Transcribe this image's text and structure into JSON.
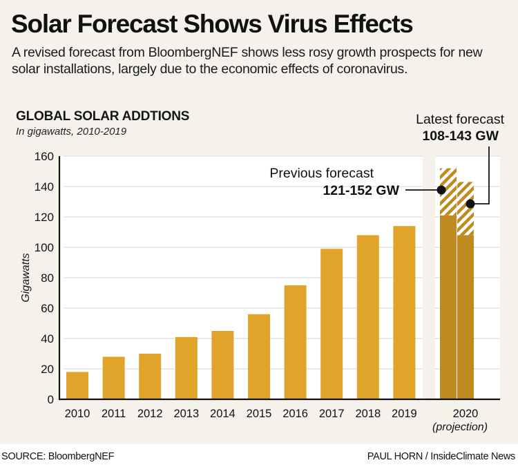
{
  "header": {
    "title": "Solar Forecast Shows Virus Effects",
    "subtitle": "A revised forecast from BloombergNEF shows less rosy growth prospects for new solar installations, largely due to the economic effects of coronavirus."
  },
  "footer": {
    "source": "SOURCE: BloombergNEF",
    "credit": "PAUL HORN / InsideClimate News"
  },
  "colors": {
    "bar": "#e0a42b",
    "projection_bar": "#bf8a1f",
    "background": "#f4f2ea",
    "plot_background": "#ffffff",
    "gridline": "#e4e4e4",
    "text": "#111111"
  },
  "chart_data": {
    "type": "bar",
    "title": "GLOBAL SOLAR ADDTIONS",
    "subtitle": "In gigawatts, 2010-2019",
    "xlabel": "",
    "ylabel": "Gigawatts",
    "ylim": [
      0,
      160
    ],
    "yticks": [
      0,
      20,
      40,
      60,
      80,
      100,
      120,
      140,
      160
    ],
    "grid": true,
    "categories": [
      "2010",
      "2011",
      "2012",
      "2013",
      "2014",
      "2015",
      "2016",
      "2017",
      "2018",
      "2019"
    ],
    "values": [
      18,
      28,
      30,
      41,
      45,
      56,
      75,
      99,
      108,
      114
    ],
    "projection": {
      "category": "2020",
      "category_note": "(projection)",
      "series": [
        {
          "name": "Previous forecast",
          "label": "121-152 GW",
          "low": 121,
          "high": 152
        },
        {
          "name": "Latest forecast",
          "label": "108-143 GW",
          "low": 108,
          "high": 143
        }
      ]
    },
    "annotations": [
      {
        "text": "Previous forecast",
        "value_text": "121-152 GW",
        "target": "previous"
      },
      {
        "text": "Latest forecast",
        "value_text": "108-143 GW",
        "target": "latest"
      }
    ]
  }
}
